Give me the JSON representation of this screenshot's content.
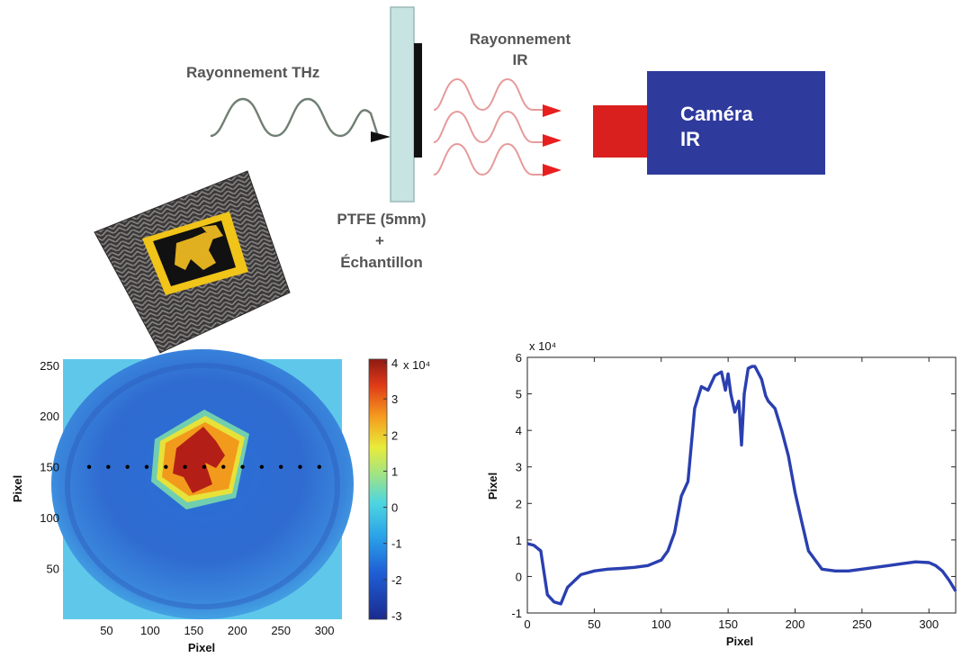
{
  "diagram": {
    "thz_label": "Rayonnement THz",
    "ir_label_line1": "Rayonnement",
    "ir_label_line2": "IR",
    "camera_line1": "Caméra",
    "camera_line2": "IR",
    "sample_line1": "PTFE (5mm)",
    "sample_line2": "+",
    "sample_line3": "Échantillon",
    "colors": {
      "thz_wave": "#6f7f73",
      "ir_wave": "#e79a9a",
      "ir_arrow": "#e81f1f",
      "ptfe_plate": "#c7e3e2",
      "sample_strip": "#111111",
      "camera_body": "#2e3a9c",
      "camera_lens": "#d9201f"
    }
  },
  "chart_data": [
    {
      "type": "heatmap",
      "xlabel": "Pixel",
      "ylabel": "Pixel",
      "x_ticks": [
        "50",
        "100",
        "150",
        "200",
        "250",
        "300"
      ],
      "y_ticks": [
        "50",
        "100",
        "150",
        "200",
        "250"
      ],
      "xlim": [
        0,
        320
      ],
      "ylim": [
        0,
        256
      ],
      "colorbar": {
        "ticks": [
          "4",
          "3",
          "2",
          "1",
          "0",
          "-1",
          "-2",
          "-3"
        ],
        "range": [
          -3,
          4
        ],
        "exponent_label": "x 10⁴"
      },
      "profile_line_y": 150,
      "colormap": "jet"
    },
    {
      "type": "line",
      "xlabel": "Pixel",
      "ylabel": "Pixel",
      "xlim": [
        0,
        320
      ],
      "ylim": [
        -1,
        6
      ],
      "x_ticks": [
        "0",
        "50",
        "100",
        "150",
        "200",
        "250",
        "300"
      ],
      "y_ticks": [
        "6",
        "5",
        "4",
        "3",
        "2",
        "1",
        "0",
        "-1"
      ],
      "y_exponent_label": "x 10⁴",
      "series": [
        {
          "color": "#2a3fb0",
          "x": [
            0,
            5,
            10,
            15,
            20,
            25,
            30,
            40,
            50,
            60,
            70,
            80,
            90,
            100,
            105,
            110,
            115,
            120,
            125,
            130,
            135,
            140,
            145,
            148,
            150,
            152,
            155,
            158,
            160,
            162,
            165,
            168,
            170,
            175,
            178,
            180,
            185,
            190,
            195,
            200,
            205,
            210,
            220,
            230,
            240,
            250,
            260,
            270,
            280,
            290,
            300,
            305,
            310,
            315,
            320
          ],
          "y": [
            0.9,
            0.85,
            0.7,
            -0.5,
            -0.7,
            -0.75,
            -0.3,
            0.05,
            0.15,
            0.2,
            0.22,
            0.25,
            0.3,
            0.45,
            0.7,
            1.2,
            2.2,
            2.6,
            4.6,
            5.2,
            5.1,
            5.5,
            5.6,
            5.1,
            5.55,
            5.0,
            4.5,
            4.8,
            3.6,
            5.0,
            5.7,
            5.75,
            5.75,
            5.4,
            4.95,
            4.8,
            4.6,
            4.0,
            3.3,
            2.3,
            1.5,
            0.7,
            0.2,
            0.15,
            0.15,
            0.2,
            0.25,
            0.3,
            0.35,
            0.4,
            0.38,
            0.3,
            0.15,
            -0.1,
            -0.4
          ]
        }
      ]
    }
  ]
}
